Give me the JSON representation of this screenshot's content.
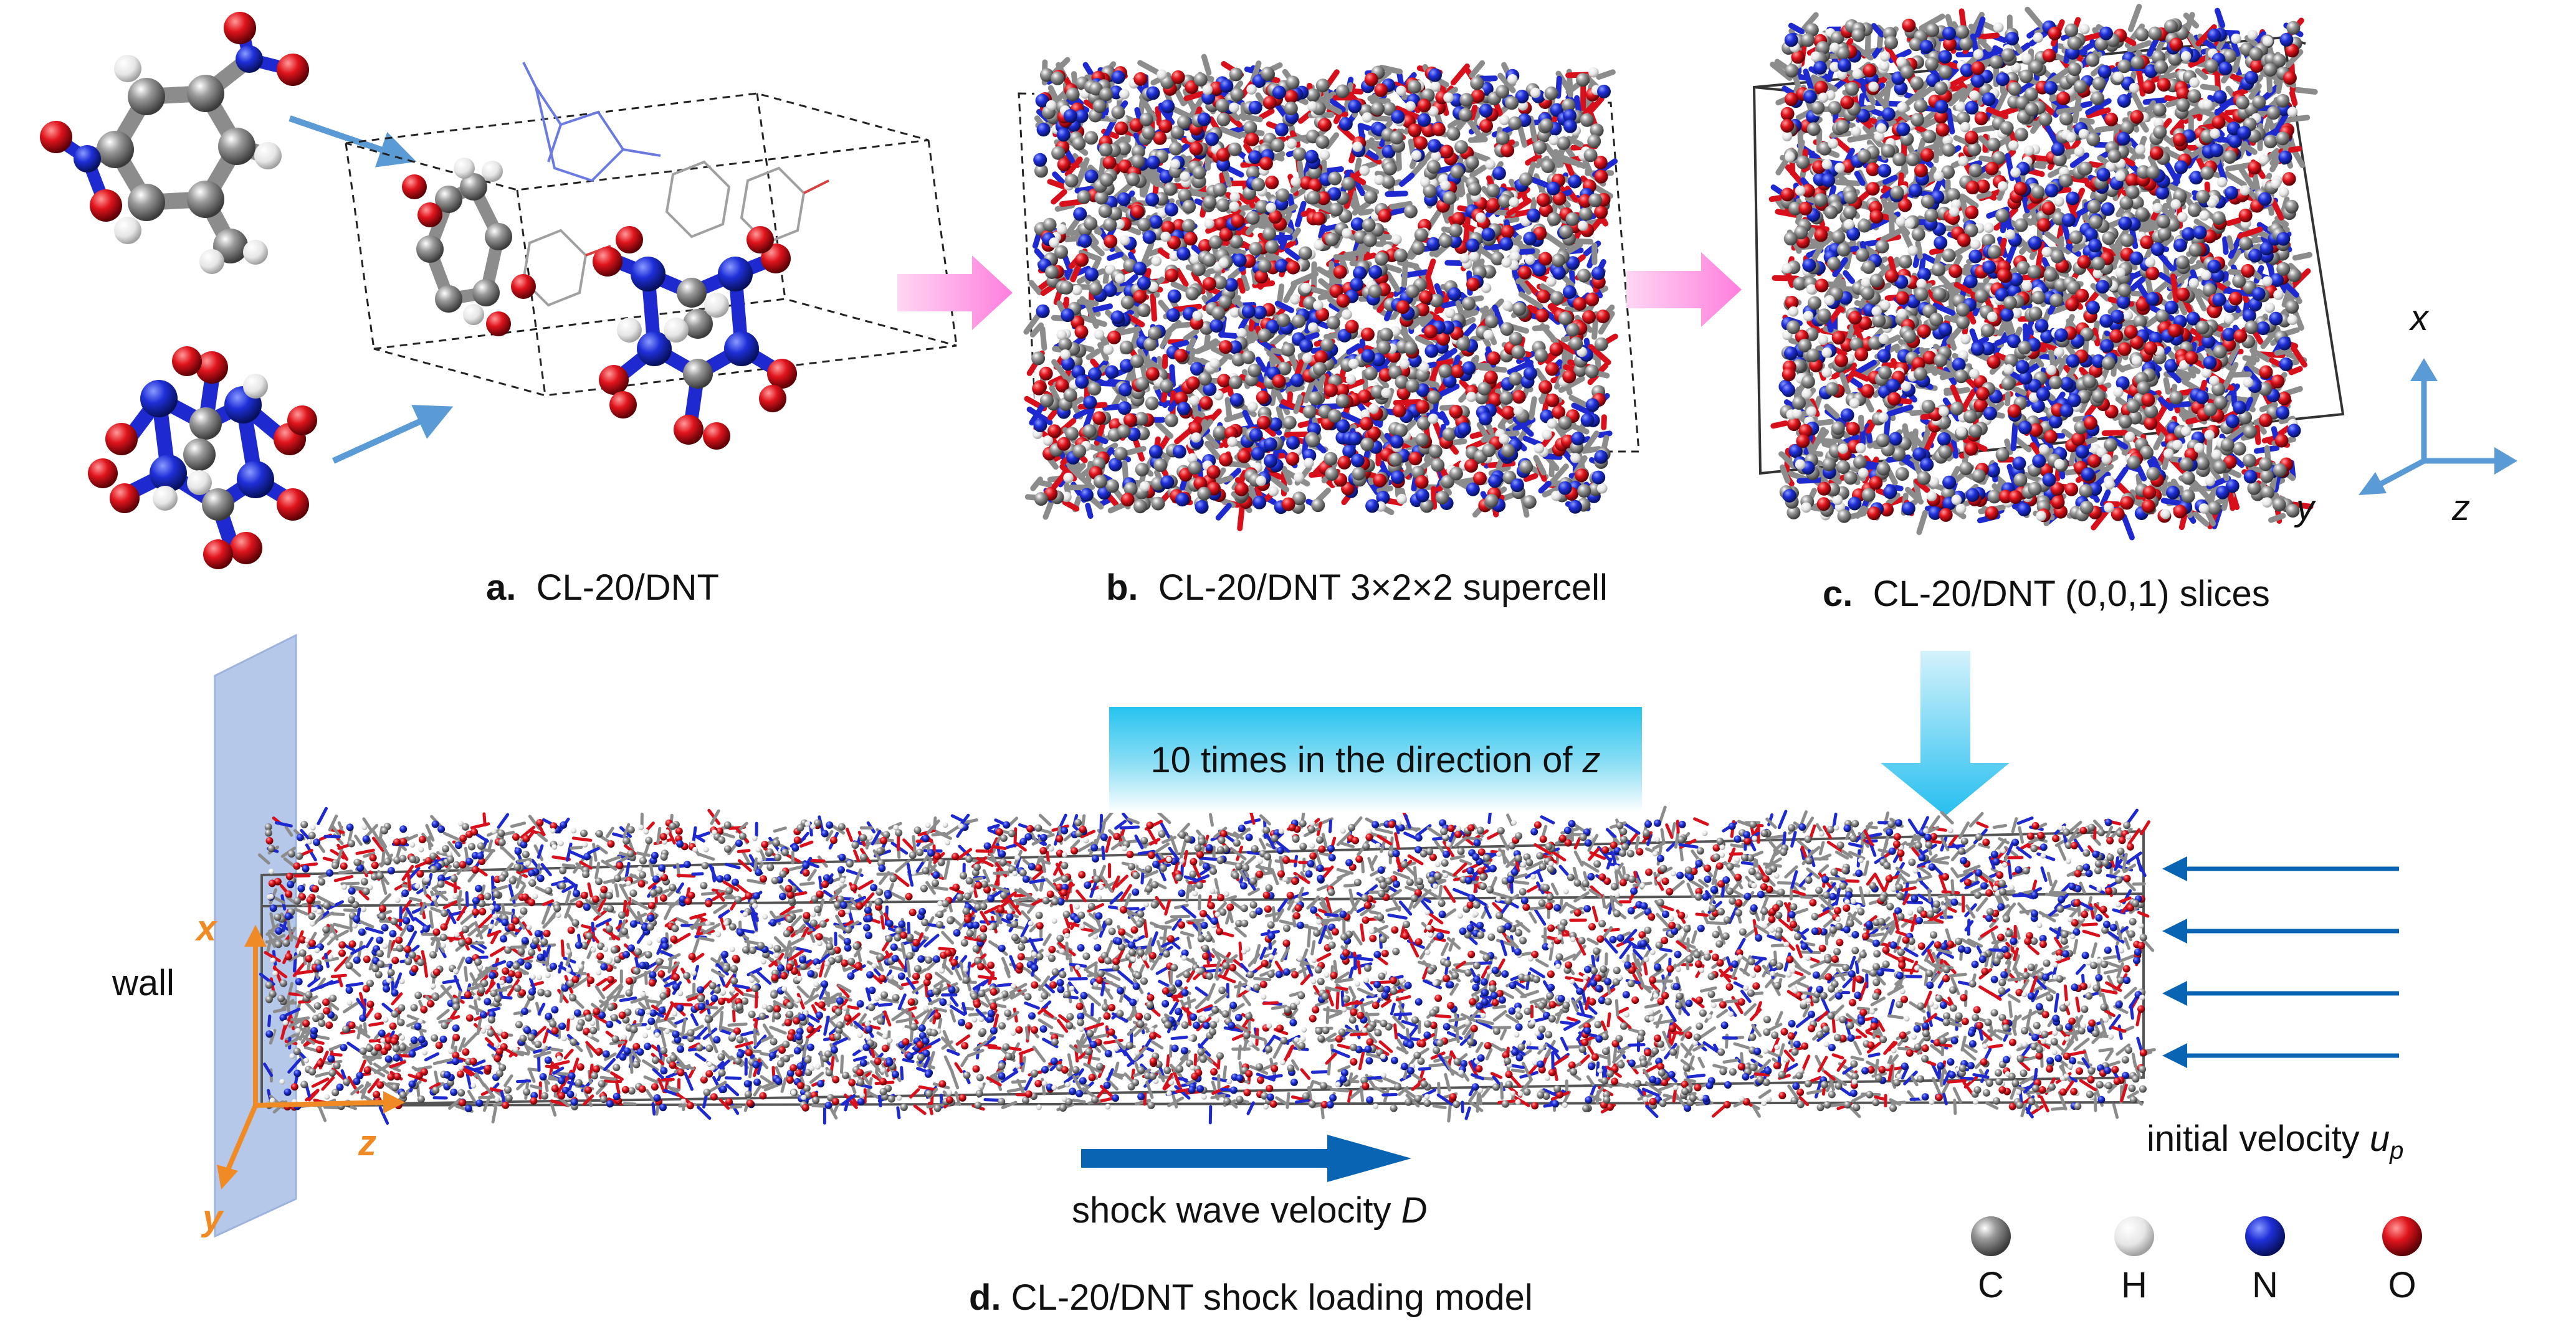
{
  "panels": {
    "a": {
      "letter": "a.",
      "text": "CL-20/DNT"
    },
    "b": {
      "letter": "b.",
      "text": "CL-20/DNT 3×2×2 supercell"
    },
    "c": {
      "letter": "c.",
      "text": "CL-20/DNT (0,0,1) slices"
    },
    "d": {
      "letter": "d.",
      "text": "CL-20/DNT shock loading model"
    }
  },
  "banner": {
    "text": "10 times in the direction of ",
    "axis": "z"
  },
  "labels": {
    "wall": "wall",
    "initial_velocity": "initial velocity ",
    "initial_velocity_symbol": "u",
    "initial_velocity_sub": "p",
    "shock": "shock wave velocity ",
    "shock_symbol": "D"
  },
  "axes_c": {
    "x": "x",
    "y": "y",
    "z": "z"
  },
  "axes_d": {
    "x": "x",
    "y": "y",
    "z": "z"
  },
  "legend": [
    {
      "symbol": "C",
      "color": "#6e6e6e"
    },
    {
      "symbol": "H",
      "color": "#f2f2f2"
    },
    {
      "symbol": "N",
      "color": "#1f2fd8"
    },
    {
      "symbol": "O",
      "color": "#e0141c"
    }
  ],
  "colors": {
    "carbon": "#8c8c8c",
    "hydrogen": "#e8e8e8",
    "nitrogen": "#1e2ad0",
    "oxygen": "#d8101c",
    "arrow_blue": "#5b9bd5",
    "arrow_dark_blue": "#0a64b4",
    "pink": "#ff8fe0",
    "orange": "#f08a24",
    "wall": "#b6c8ea"
  }
}
